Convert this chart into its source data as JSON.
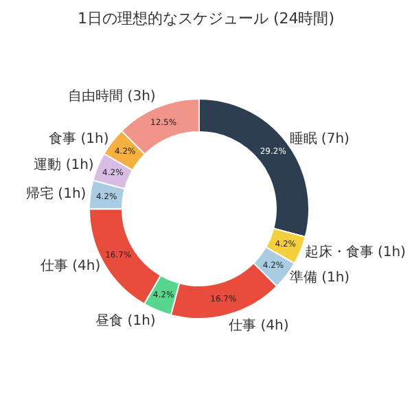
{
  "chart_data": {
    "type": "donut",
    "title": "1日の理想的なスケジュール (24時間)",
    "categories": [
      "睡眠 (7h)",
      "起床・食事 (1h)",
      "準備 (1h)",
      "仕事 (4h)",
      "昼食 (1h)",
      "仕事 (4h)",
      "帰宅 (1h)",
      "運動 (1h)",
      "食事 (1h)",
      "自由時間 (3h)"
    ],
    "values": [
      29.2,
      4.2,
      4.2,
      16.7,
      4.2,
      16.7,
      4.2,
      4.2,
      4.2,
      12.5
    ],
    "value_labels": [
      "29.2%",
      "4.2%",
      "4.2%",
      "16.7%",
      "4.2%",
      "16.7%",
      "4.2%",
      "4.2%",
      "4.2%",
      "12.5%"
    ],
    "colors": [
      "#2c3e50",
      "#f4d03f",
      "#a9cce3",
      "#e74c3c",
      "#58d68d",
      "#e74c3c",
      "#a9cce3",
      "#d7bde2",
      "#f5b041",
      "#f1948a"
    ]
  }
}
